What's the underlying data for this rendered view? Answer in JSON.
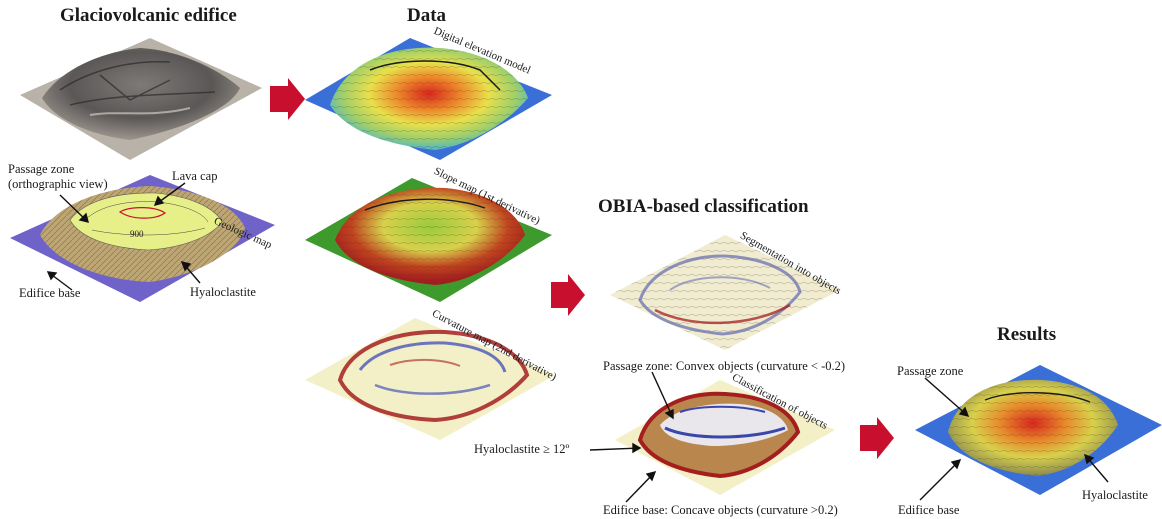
{
  "headers": {
    "edifice": "Glaciovolcanic edifice",
    "data": "Data",
    "obia": "OBIA-based classification",
    "results": "Results"
  },
  "map_titles": {
    "geologic": "Geologic map",
    "dem": "Digital elevation model",
    "slope": "Slope map (1st derivative)",
    "curvature": "Curvature map (2nd derivative)",
    "segmentation": "Segmentation into objects",
    "classification": "Classification of objects"
  },
  "geologic_labels": {
    "passage_zone": "Passage zone",
    "orthographic": "(orthographic view)",
    "lava_cap": "Lava cap",
    "edifice_base": "Edifice base",
    "hyaloclastite": "Hyaloclastite",
    "contour": "900"
  },
  "classification_labels": {
    "passage_zone": "Passage zone: Convex objects (curvature < -0.2)",
    "hyaloclastite": "Hyaloclastite ≥ 12º",
    "edifice_base": "Edifice base: Concave objects (curvature >0.2)"
  },
  "results_labels": {
    "passage_zone": "Passage zone",
    "edifice_base": "Edifice base",
    "hyaloclastite": "Hyaloclastite"
  },
  "colors": {
    "arrow": "#c8102e",
    "dem_low": "#3a6fd8",
    "dem_mid": "#e9e04a",
    "dem_high": "#d8261c",
    "slope_green": "#3f9a2e",
    "geologic_purple": "#6f63c9",
    "geologic_yellow": "#e7ef88",
    "geologic_tan": "#bda674",
    "curvature_bg": "#f3efc6"
  },
  "icons": [
    "flow-arrow-icon"
  ]
}
